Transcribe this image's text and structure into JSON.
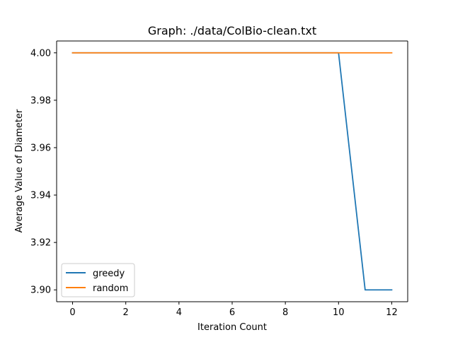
{
  "chart_data": {
    "type": "line",
    "title": "Graph: ./data/ColBio-clean.txt",
    "xlabel": "Iteration Count",
    "ylabel": "Average Value of Diameter",
    "x": [
      0,
      1,
      2,
      3,
      4,
      5,
      6,
      7,
      8,
      9,
      10,
      11,
      12
    ],
    "series": [
      {
        "name": "greedy",
        "color": "#1f77b4",
        "values": [
          4.0,
          4.0,
          4.0,
          4.0,
          4.0,
          4.0,
          4.0,
          4.0,
          4.0,
          4.0,
          4.0,
          3.9,
          3.9
        ]
      },
      {
        "name": "random",
        "color": "#ff7f0e",
        "values": [
          4.0,
          4.0,
          4.0,
          4.0,
          4.0,
          4.0,
          4.0,
          4.0,
          4.0,
          4.0,
          4.0,
          4.0,
          4.0
        ]
      }
    ],
    "xticks": [
      "0",
      "2",
      "4",
      "6",
      "8",
      "10",
      "12"
    ],
    "yticks": [
      "3.90",
      "3.92",
      "3.94",
      "3.96",
      "3.98",
      "4.00"
    ],
    "xlim": [
      -0.6,
      12.6
    ],
    "ylim": [
      3.895,
      4.005
    ],
    "grid": false,
    "legend_position": "lower-left"
  }
}
